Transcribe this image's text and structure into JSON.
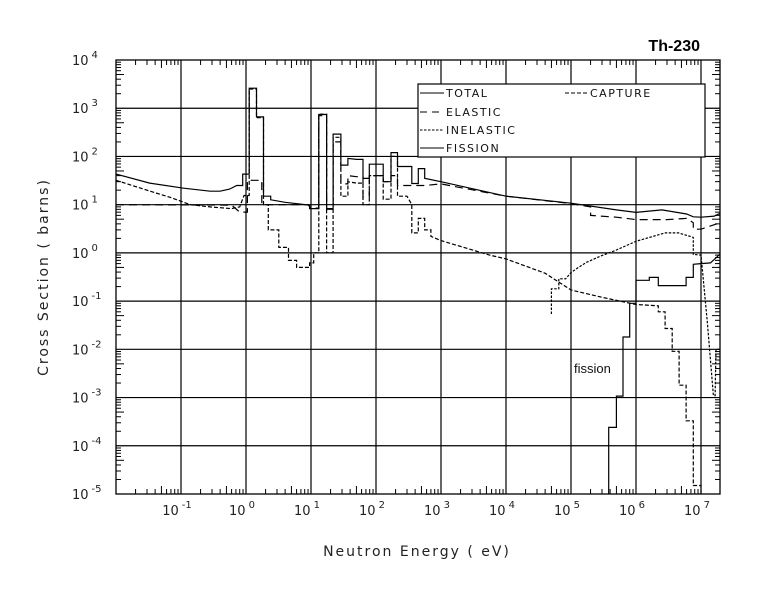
{
  "chart_data": {
    "type": "line",
    "title": "Th-230",
    "xlabel": "Neutron Energy ( eV)",
    "ylabel": "Cross Section ( barns)",
    "x_scale": "log",
    "y_scale": "log",
    "xlim": [
      0.01,
      19500000
    ],
    "ylim": [
      1e-05,
      10000
    ],
    "grid": true,
    "legend_position": "top-right",
    "x_ticks": [
      {
        "base": "10",
        "exp": "-1",
        "value": 0.1
      },
      {
        "base": "10",
        "exp": "0",
        "value": 1
      },
      {
        "base": "10",
        "exp": "1",
        "value": 10
      },
      {
        "base": "10",
        "exp": "2",
        "value": 100
      },
      {
        "base": "10",
        "exp": "3",
        "value": 1000
      },
      {
        "base": "10",
        "exp": "4",
        "value": 10000
      },
      {
        "base": "10",
        "exp": "5",
        "value": 100000
      },
      {
        "base": "10",
        "exp": "6",
        "value": 1000000
      },
      {
        "base": "10",
        "exp": "7",
        "value": 10000000
      }
    ],
    "y_ticks": [
      {
        "base": "10",
        "exp": "4",
        "value": 10000
      },
      {
        "base": "10",
        "exp": "3",
        "value": 1000
      },
      {
        "base": "10",
        "exp": "2",
        "value": 100
      },
      {
        "base": "10",
        "exp": "1",
        "value": 10
      },
      {
        "base": "10",
        "exp": "0",
        "value": 1
      },
      {
        "base": "10",
        "exp": "-1",
        "value": 0.1
      },
      {
        "base": "10",
        "exp": "-2",
        "value": 0.01
      },
      {
        "base": "10",
        "exp": "-3",
        "value": 0.001
      },
      {
        "base": "10",
        "exp": "-4",
        "value": 0.0001
      },
      {
        "base": "10",
        "exp": "-5",
        "value": 1e-05
      }
    ],
    "annotations": [
      {
        "text": "fission",
        "x": 150000,
        "y": 0.0017
      }
    ],
    "series": [
      {
        "name": "TOTAL",
        "style": "solid",
        "color": "#000000",
        "points": [
          [
            0.01,
            43
          ],
          [
            0.033,
            28
          ],
          [
            0.11,
            22
          ],
          [
            0.28,
            19
          ],
          [
            0.4,
            19
          ],
          [
            0.56,
            21
          ],
          [
            0.72,
            25
          ],
          [
            0.89,
            25
          ],
          [
            0.89,
            43
          ],
          [
            1.12,
            43
          ],
          [
            1.12,
            2600
          ],
          [
            1.45,
            2600
          ],
          [
            1.45,
            660
          ],
          [
            1.86,
            660
          ],
          [
            1.86,
            15
          ],
          [
            2.4,
            15
          ],
          [
            2.4,
            12.6
          ],
          [
            4,
            11.2
          ],
          [
            9.5,
            9.8
          ],
          [
            9.5,
            8.3
          ],
          [
            13.2,
            8.3
          ],
          [
            13.2,
            740
          ],
          [
            17.4,
            740
          ],
          [
            17.4,
            8.3
          ],
          [
            21.9,
            8.3
          ],
          [
            21.9,
            290
          ],
          [
            28.8,
            290
          ],
          [
            28.8,
            66
          ],
          [
            37,
            66
          ],
          [
            37,
            91
          ],
          [
            50,
            87
          ],
          [
            63,
            87
          ],
          [
            63,
            35
          ],
          [
            79,
            35
          ],
          [
            79,
            69
          ],
          [
            129,
            69
          ],
          [
            129,
            30
          ],
          [
            170,
            30
          ],
          [
            170,
            120
          ],
          [
            214,
            120
          ],
          [
            214,
            62
          ],
          [
            355,
            62
          ],
          [
            355,
            27.5
          ],
          [
            447,
            27.5
          ],
          [
            447,
            56
          ],
          [
            562,
            56
          ],
          [
            562,
            35
          ],
          [
            1000,
            30
          ],
          [
            10000,
            15
          ],
          [
            100000,
            10.7
          ],
          [
            500000,
            7.8
          ],
          [
            1000000,
            6.9
          ],
          [
            2500000,
            7.8
          ],
          [
            6000000,
            6.4
          ],
          [
            7600000,
            5.6
          ],
          [
            10000000,
            5.5
          ],
          [
            16000000,
            5.8
          ],
          [
            19500000,
            6.6
          ]
        ]
      },
      {
        "name": "ELASTIC",
        "style": "long-dash",
        "color": "#000000",
        "points": [
          [
            0.01,
            10
          ],
          [
            0.6,
            9.8
          ],
          [
            0.8,
            7
          ],
          [
            1.05,
            7
          ],
          [
            1.05,
            32
          ],
          [
            1.75,
            32
          ],
          [
            1.75,
            10
          ],
          [
            9,
            10
          ],
          [
            10,
            8.5
          ],
          [
            13.2,
            8.5
          ],
          [
            13.2,
            700
          ],
          [
            17.4,
            700
          ],
          [
            17.4,
            8
          ],
          [
            21.9,
            8
          ],
          [
            21.9,
            200
          ],
          [
            28.8,
            200
          ],
          [
            28.8,
            27
          ],
          [
            37,
            27
          ],
          [
            37,
            40
          ],
          [
            50,
            38
          ],
          [
            63,
            38
          ],
          [
            63,
            14.5
          ],
          [
            79,
            14.5
          ],
          [
            79,
            40
          ],
          [
            129,
            40
          ],
          [
            129,
            30
          ],
          [
            170,
            30
          ],
          [
            170,
            40
          ],
          [
            214,
            40
          ],
          [
            214,
            25
          ],
          [
            562,
            25
          ],
          [
            1000,
            27
          ],
          [
            10000,
            15
          ],
          [
            100000,
            10.5
          ],
          [
            200000,
            9
          ],
          [
            200000,
            6
          ],
          [
            500000,
            5.5
          ],
          [
            1000000,
            4.9
          ],
          [
            3000000,
            4.9
          ],
          [
            6000000,
            5.2
          ],
          [
            7600000,
            4.2
          ],
          [
            7600000,
            3.1
          ],
          [
            10000000,
            3.1
          ],
          [
            13000000,
            3.5
          ],
          [
            19500000,
            4.2
          ]
        ]
      },
      {
        "name": "INELASTIC",
        "style": "short-dash",
        "color": "#000000",
        "points": [
          [
            50000,
            0.054
          ],
          [
            50000,
            0.18
          ],
          [
            65000,
            0.18
          ],
          [
            65000,
            0.29
          ],
          [
            83000,
            0.29
          ],
          [
            100000,
            0.39
          ],
          [
            130000,
            0.5
          ],
          [
            170000,
            0.63
          ],
          [
            280000,
            0.85
          ],
          [
            500000,
            1.15
          ],
          [
            1000000,
            1.74
          ],
          [
            2800000,
            2.6
          ],
          [
            4500000,
            2.6
          ],
          [
            7600000,
            2.1
          ],
          [
            7600000,
            0.93
          ],
          [
            10000000,
            0.9
          ],
          [
            12500000,
            0.037
          ],
          [
            15500000,
            0.0011
          ],
          [
            16500000,
            0.0011
          ],
          [
            17000000,
            0.01
          ],
          [
            19500000,
            0.01
          ]
        ]
      },
      {
        "name": "FISSION",
        "style": "solid",
        "color": "#000000",
        "points": [
          [
            380000,
            1e-05
          ],
          [
            380000,
            0.00024
          ],
          [
            500000,
            0.00024
          ],
          [
            500000,
            0.00107
          ],
          [
            630000,
            0.00107
          ],
          [
            630000,
            0.018
          ],
          [
            800000,
            0.018
          ],
          [
            800000,
            0.09
          ],
          [
            1000000,
            0.09
          ],
          [
            1000000,
            0.27
          ],
          [
            1600000,
            0.27
          ],
          [
            1600000,
            0.31
          ],
          [
            2200000,
            0.31
          ],
          [
            2200000,
            0.21
          ],
          [
            5900000,
            0.21
          ],
          [
            5900000,
            0.31
          ],
          [
            7600000,
            0.31
          ],
          [
            7600000,
            0.58
          ],
          [
            10000000,
            0.6
          ],
          [
            14000000,
            0.62
          ],
          [
            19500000,
            0.94
          ]
        ]
      },
      {
        "name": "CAPTURE",
        "style": "medium-dash",
        "color": "#000000",
        "points": [
          [
            0.01,
            32
          ],
          [
            0.03,
            20
          ],
          [
            0.07,
            14
          ],
          [
            0.14,
            10
          ],
          [
            0.3,
            8.9
          ],
          [
            0.6,
            8.3
          ],
          [
            0.8,
            9
          ],
          [
            0.93,
            15.5
          ],
          [
            1.12,
            15.5
          ],
          [
            1.12,
            2500
          ],
          [
            1.45,
            2500
          ],
          [
            1.45,
            640
          ],
          [
            1.86,
            640
          ],
          [
            1.86,
            10
          ],
          [
            2.2,
            10
          ],
          [
            2.2,
            3
          ],
          [
            3.2,
            3
          ],
          [
            3.2,
            1.3
          ],
          [
            4.5,
            1.3
          ],
          [
            4.5,
            0.7
          ],
          [
            6,
            0.7
          ],
          [
            6,
            0.5
          ],
          [
            9.5,
            0.5
          ],
          [
            9.5,
            0.62
          ],
          [
            11,
            0.62
          ],
          [
            11,
            1
          ],
          [
            13.2,
            1
          ],
          [
            13.2,
            750
          ],
          [
            17.4,
            750
          ],
          [
            17.4,
            1
          ],
          [
            21.9,
            1
          ],
          [
            21.9,
            250
          ],
          [
            28.8,
            250
          ],
          [
            28.8,
            15
          ],
          [
            37,
            15
          ],
          [
            37,
            30
          ],
          [
            50,
            28
          ],
          [
            63,
            28
          ],
          [
            63,
            10
          ],
          [
            79,
            10
          ],
          [
            79,
            40
          ],
          [
            129,
            40
          ],
          [
            129,
            13
          ],
          [
            170,
            13
          ],
          [
            170,
            100
          ],
          [
            214,
            100
          ],
          [
            214,
            15
          ],
          [
            300,
            15
          ],
          [
            355,
            10
          ],
          [
            355,
            2.6
          ],
          [
            447,
            2.6
          ],
          [
            447,
            5.2
          ],
          [
            562,
            5.2
          ],
          [
            562,
            3
          ],
          [
            700,
            3
          ],
          [
            700,
            2.2
          ],
          [
            1000,
            1.8
          ],
          [
            5600,
            0.9
          ],
          [
            10000,
            0.75
          ],
          [
            40000,
            0.38
          ],
          [
            100000,
            0.17
          ],
          [
            300000,
            0.12
          ],
          [
            1000000,
            0.085
          ],
          [
            2200000,
            0.08
          ],
          [
            2200000,
            0.06
          ],
          [
            2800000,
            0.06
          ],
          [
            2800000,
            0.027
          ],
          [
            3600000,
            0.027
          ],
          [
            3600000,
            0.0091
          ],
          [
            4600000,
            0.0091
          ],
          [
            4600000,
            0.0018
          ],
          [
            5900000,
            0.0018
          ],
          [
            5900000,
            0.00033
          ],
          [
            7600000,
            0.00033
          ],
          [
            7600000,
            1.5e-05
          ],
          [
            10000000,
            1.5e-05
          ],
          [
            10000000,
            1e-05
          ]
        ]
      }
    ]
  }
}
